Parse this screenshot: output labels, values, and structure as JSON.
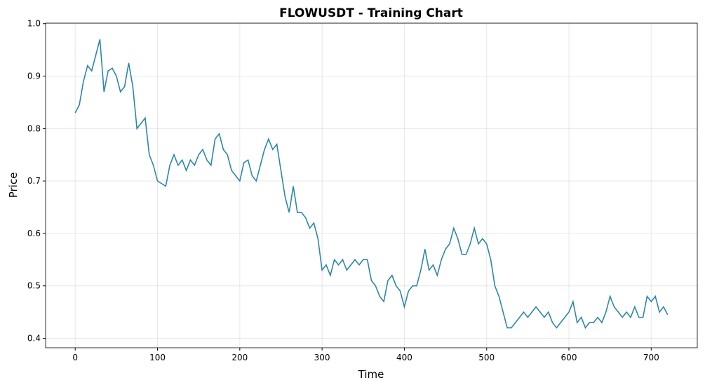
{
  "chart_data": {
    "type": "line",
    "title": "FLOWUSDT - Training Chart",
    "x_label": "Time",
    "y_label": "Price",
    "x": [
      0,
      5,
      10,
      15,
      20,
      25,
      30,
      35,
      40,
      45,
      50,
      55,
      60,
      65,
      70,
      75,
      80,
      85,
      90,
      95,
      100,
      105,
      110,
      115,
      120,
      125,
      130,
      135,
      140,
      145,
      150,
      155,
      160,
      165,
      170,
      175,
      180,
      185,
      190,
      195,
      200,
      205,
      210,
      215,
      220,
      225,
      230,
      235,
      240,
      245,
      250,
      255,
      260,
      265,
      270,
      275,
      280,
      285,
      290,
      295,
      300,
      305,
      310,
      315,
      320,
      325,
      330,
      335,
      340,
      345,
      350,
      355,
      360,
      365,
      370,
      375,
      380,
      385,
      390,
      395,
      400,
      405,
      410,
      415,
      420,
      425,
      430,
      435,
      440,
      445,
      450,
      455,
      460,
      465,
      470,
      475,
      480,
      485,
      490,
      495,
      500,
      505,
      510,
      515,
      520,
      525,
      530,
      535,
      540,
      545,
      550,
      555,
      560,
      565,
      570,
      575,
      580,
      585,
      590,
      595,
      600,
      605,
      610,
      615,
      620,
      625,
      630,
      635,
      640,
      645,
      650,
      655,
      660,
      665,
      670,
      675,
      680,
      685,
      690,
      695,
      700,
      705,
      710,
      715,
      720
    ],
    "series": [
      {
        "name": "Price",
        "color": "#2e86ab",
        "values": [
          0.83,
          0.845,
          0.89,
          0.92,
          0.91,
          0.94,
          0.97,
          0.87,
          0.91,
          0.915,
          0.9,
          0.87,
          0.88,
          0.925,
          0.88,
          0.8,
          0.81,
          0.82,
          0.75,
          0.73,
          0.7,
          0.695,
          0.69,
          0.73,
          0.75,
          0.73,
          0.74,
          0.72,
          0.74,
          0.73,
          0.75,
          0.76,
          0.74,
          0.73,
          0.78,
          0.79,
          0.76,
          0.75,
          0.72,
          0.71,
          0.7,
          0.735,
          0.74,
          0.71,
          0.7,
          0.73,
          0.76,
          0.78,
          0.76,
          0.77,
          0.72,
          0.67,
          0.64,
          0.69,
          0.64,
          0.64,
          0.63,
          0.61,
          0.62,
          0.59,
          0.53,
          0.54,
          0.52,
          0.55,
          0.54,
          0.55,
          0.53,
          0.54,
          0.55,
          0.54,
          0.55,
          0.55,
          0.51,
          0.5,
          0.48,
          0.47,
          0.51,
          0.52,
          0.5,
          0.49,
          0.46,
          0.49,
          0.5,
          0.5,
          0.53,
          0.57,
          0.53,
          0.54,
          0.52,
          0.55,
          0.57,
          0.58,
          0.61,
          0.59,
          0.56,
          0.56,
          0.58,
          0.61,
          0.58,
          0.59,
          0.58,
          0.55,
          0.5,
          0.48,
          0.45,
          0.42,
          0.42,
          0.43,
          0.44,
          0.45,
          0.44,
          0.45,
          0.46,
          0.45,
          0.44,
          0.45,
          0.43,
          0.42,
          0.43,
          0.44,
          0.45,
          0.47,
          0.43,
          0.44,
          0.42,
          0.43,
          0.43,
          0.44,
          0.43,
          0.45,
          0.48,
          0.46,
          0.45,
          0.44,
          0.45,
          0.44,
          0.46,
          0.44,
          0.44,
          0.48,
          0.47,
          0.48,
          0.45,
          0.46,
          0.445
        ]
      }
    ],
    "xlim": [
      -36,
      756
    ],
    "ylim": [
      0.382,
      1.001
    ],
    "xticks": [
      0,
      100,
      200,
      300,
      400,
      500,
      600,
      700
    ],
    "yticks": [
      0.4,
      0.5,
      0.6,
      0.7,
      0.8,
      0.9,
      {
        "value": 1,
        "label": "1.0"
      }
    ],
    "grid": true
  }
}
